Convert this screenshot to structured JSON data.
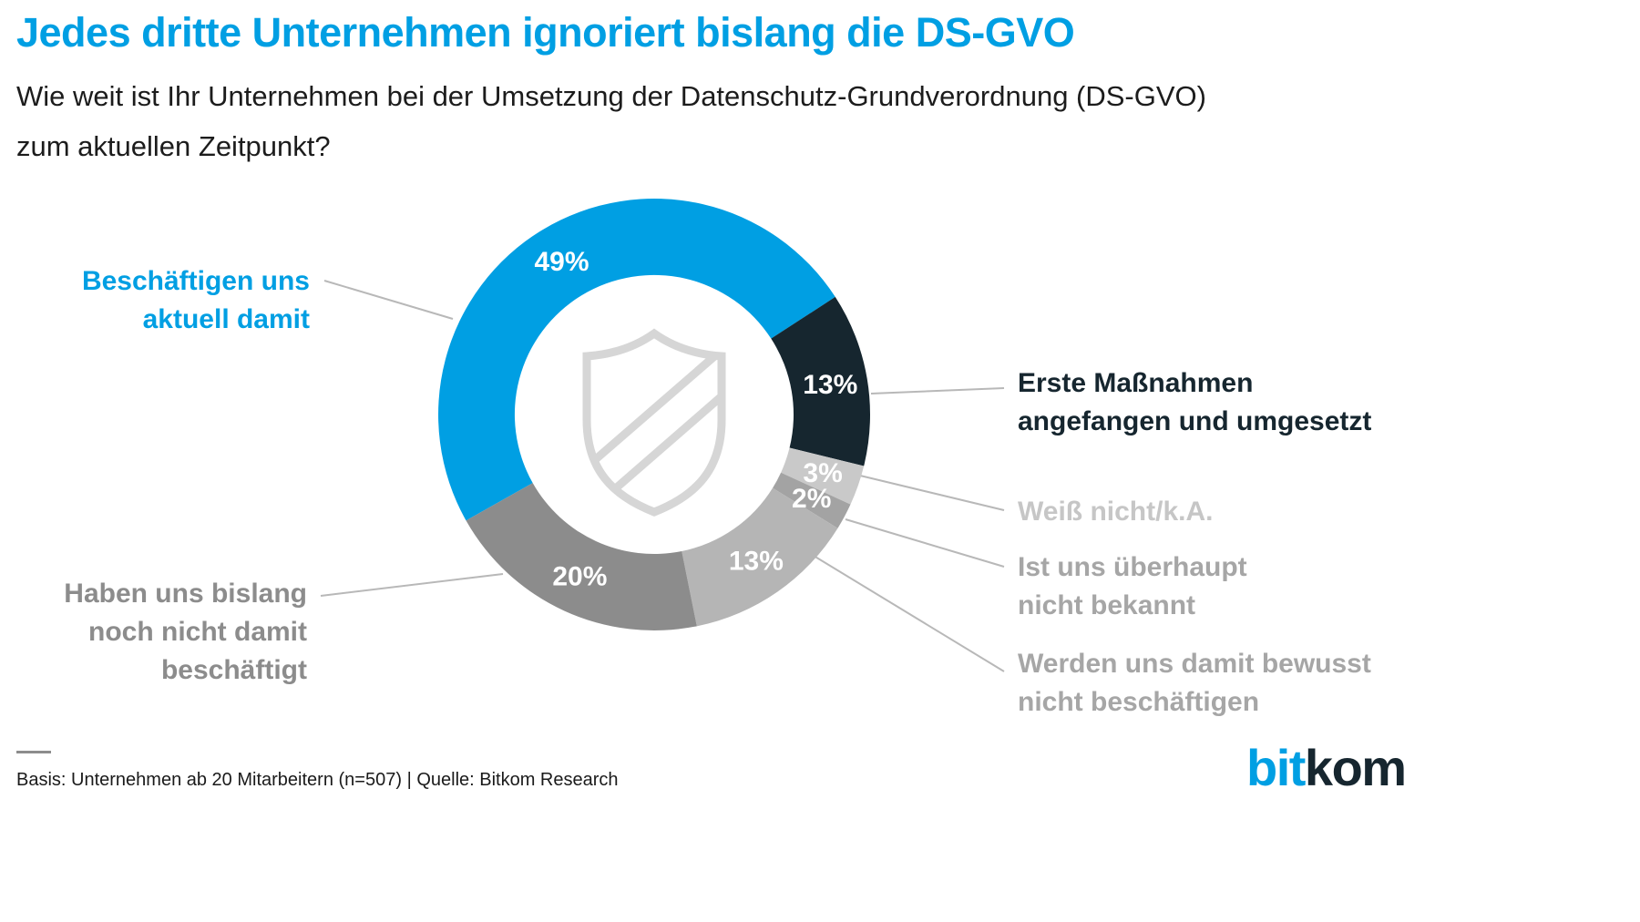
{
  "header": {
    "title": "Jedes dritte Unternehmen ignoriert bislang die DS-GVO",
    "subtitle": "Wie weit ist Ihr Unternehmen bei der Umsetzung der Datenschutz-Grundverordnung (DS-GVO)\nzum aktuellen Zeitpunkt?"
  },
  "chart_data": {
    "type": "pie",
    "subtype": "donut",
    "unit": "%",
    "start_angle_deg": 240.6,
    "legend_position": "callouts",
    "center_icon": "shield-icon",
    "segments": [
      {
        "label": "Beschäftigen uns aktuell damit",
        "value": 49,
        "color": "#009fe3"
      },
      {
        "label": "Erste Maßnahmen angefangen und umgesetzt",
        "value": 13,
        "color": "#16262f"
      },
      {
        "label": "Weiß nicht/k.A.",
        "value": 3,
        "color": "#c9c9c9"
      },
      {
        "label": "Ist uns überhaupt nicht bekannt",
        "value": 2,
        "color": "#a3a3a3"
      },
      {
        "label": "Werden uns damit bewusst nicht beschäftigen",
        "value": 13,
        "color": "#b5b5b5"
      },
      {
        "label": "Haben uns bislang noch nicht damit beschäftigt",
        "value": 20,
        "color": "#8c8c8c"
      }
    ]
  },
  "callouts": [
    {
      "text": "Beschäftigen uns\naktuell damit",
      "color": "#009fe3"
    },
    {
      "text": "Erste Maßnahmen\nangefangen und umgesetzt",
      "color": "#16262f"
    },
    {
      "text": "Weiß nicht/k.A.",
      "color": "#c6c6c6"
    },
    {
      "text": "Ist uns überhaupt\nnicht bekannt",
      "color": "#a6a6a6"
    },
    {
      "text": "Werden uns damit bewusst\nnicht beschäftigen",
      "color": "#a6a6a6"
    },
    {
      "text": "Haben uns bislang\nnoch nicht damit\nbeschäftigt",
      "color": "#8c8c8c"
    }
  ],
  "footer": {
    "basis": "Basis: Unternehmen ab 20 Mitarbeitern (n=507) | Quelle: Bitkom Research",
    "logo": {
      "part1": "bit",
      "part2": "kom"
    }
  }
}
